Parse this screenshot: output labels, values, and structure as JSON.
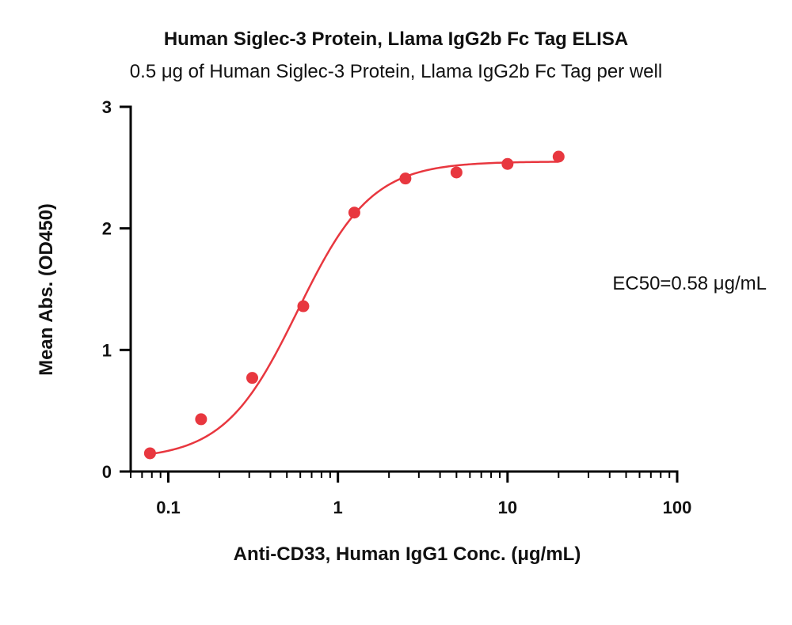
{
  "chart_data": {
    "type": "scatter",
    "title": "Human Siglec-3 Protein, Llama IgG2b Fc Tag ELISA",
    "subtitle": "0.5 μg of Human Siglec-3 Protein, Llama IgG2b Fc Tag per well",
    "xlabel": "Anti-CD33, Human IgG1 Conc. (μg/mL)",
    "ylabel": "Mean Abs. (OD450)",
    "xscale": "log",
    "xlim": [
      0.06,
      100
    ],
    "ylim": [
      0,
      3
    ],
    "x_ticks": [
      0.1,
      1,
      10,
      100
    ],
    "x_tick_labels": [
      "0.1",
      "1",
      "10",
      "100"
    ],
    "y_ticks": [
      0,
      1,
      2,
      3
    ],
    "y_tick_labels": [
      "0",
      "1",
      "2",
      "3"
    ],
    "grid": false,
    "color": "#e8373f",
    "series": [
      {
        "points": [
          {
            "x": 0.078,
            "y": 0.15
          },
          {
            "x": 0.156,
            "y": 0.43
          },
          {
            "x": 0.3125,
            "y": 0.77
          },
          {
            "x": 0.625,
            "y": 1.36
          },
          {
            "x": 1.25,
            "y": 2.13
          },
          {
            "x": 2.5,
            "y": 2.41
          },
          {
            "x": 5,
            "y": 2.46
          },
          {
            "x": 10,
            "y": 2.53
          },
          {
            "x": 20,
            "y": 2.59
          }
        ],
        "fit": {
          "model": "4PL",
          "bottom": 0.1,
          "top": 2.55,
          "ec50": 0.58,
          "hill": 2.0,
          "x_range": [
            0.078,
            20
          ]
        }
      }
    ],
    "annotation": "EC50=0.58 μg/mL"
  }
}
